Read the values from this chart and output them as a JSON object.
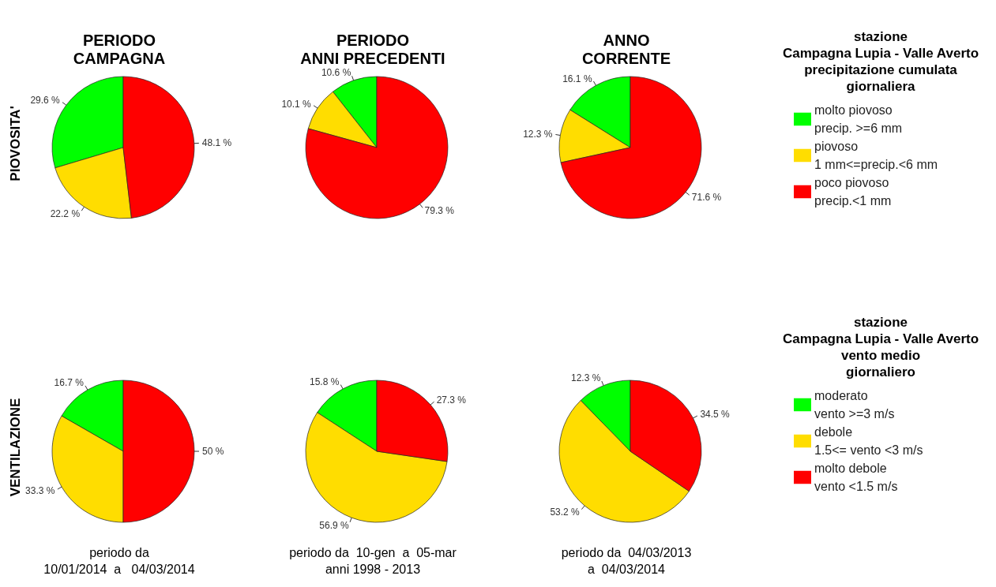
{
  "chart_data": [
    {
      "type": "pie",
      "title": "PERIODO\nCAMPAGNA",
      "ylabel": "PIOVOSITA'",
      "categories": [
        null,
        null,
        null
      ],
      "values": [
        29.6,
        22.2,
        48.1
      ],
      "value_labels": [
        "29.6 %",
        "22.2 %",
        "48.1 %"
      ],
      "colors": [
        "#00ff00",
        "#ffdd00",
        "#ff0000"
      ]
    },
    {
      "type": "pie",
      "title": "PERIODO\nANNI PRECEDENTI",
      "categories": [
        null,
        null,
        null
      ],
      "values": [
        10.6,
        10.1,
        79.3
      ],
      "value_labels": [
        "10.6 %",
        "10.1 %",
        "79.3 %"
      ],
      "colors": [
        "#00ff00",
        "#ffdd00",
        "#ff0000"
      ]
    },
    {
      "type": "pie",
      "title": "ANNO\nCORRENTE",
      "categories": [
        "molto piovoso\nprecip. >=6 mm",
        "piovoso\n1 mm<=precip.<6 mm",
        "poco piovoso\nprecip.<1 mm"
      ],
      "values": [
        16.1,
        12.3,
        71.6
      ],
      "value_labels": [
        "16.1 %",
        "12.3 %",
        "71.6 %"
      ],
      "colors": [
        "#00ff00",
        "#ffdd00",
        "#ff0000"
      ],
      "legend": "right",
      "legend_title": "stazione\nCampagna Lupia - Valle Averto\nprecipitazione cumulata\ngiornaliera"
    },
    {
      "type": "pie",
      "ylabel": "VENTILAZIONE",
      "categories": [
        null,
        null,
        null
      ],
      "values": [
        16.7,
        33.3,
        50
      ],
      "value_labels": [
        "16.7 %",
        "33.3 %",
        "50 %"
      ],
      "colors": [
        "#00ff00",
        "#ffdd00",
        "#ff0000"
      ],
      "annotations": [
        "periodo da\n10/01/2014  a   04/03/2014"
      ]
    },
    {
      "type": "pie",
      "categories": [
        null,
        null,
        null
      ],
      "values": [
        15.8,
        56.9,
        27.3
      ],
      "value_labels": [
        "15.8 %",
        "56.9 %",
        "27.3 %"
      ],
      "colors": [
        "#00ff00",
        "#ffdd00",
        "#ff0000"
      ],
      "annotations": [
        "periodo da  10-gen  a  05-mar\nanni 1998 - 2013"
      ]
    },
    {
      "type": "pie",
      "categories": [
        "moderato\nvento >=3 m/s",
        "debole\n1.5<= vento <3 m/s",
        "molto debole\nvento <1.5 m/s"
      ],
      "values": [
        12.3,
        53.2,
        34.5
      ],
      "value_labels": [
        "12.3 %",
        "53.2 %",
        "34.5 %"
      ],
      "colors": [
        "#00ff00",
        "#ffdd00",
        "#ff0000"
      ],
      "legend": "right",
      "legend_title": "stazione\nCampagna Lupia - Valle Averto\nvento medio\ngiornaliero",
      "annotations": [
        "periodo da  04/03/2013\na  04/03/2014"
      ]
    }
  ]
}
